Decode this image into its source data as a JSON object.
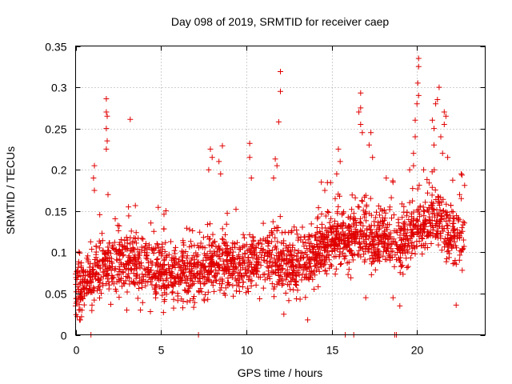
{
  "chart_data": {
    "type": "scatter",
    "title": "Day 098 of 2019, SRMTID for receiver caep",
    "xlabel": "GPS time / hours",
    "ylabel": "SRMTID / TECUs",
    "xlim": [
      0,
      24
    ],
    "ylim": [
      0,
      0.35
    ],
    "xticks": [
      0,
      5,
      10,
      15,
      20
    ],
    "xtick_labels": [
      "0",
      "5",
      "10",
      "15",
      "20"
    ],
    "yticks": [
      0,
      0.05,
      0.1,
      0.15,
      0.2,
      0.25,
      0.3,
      0.35
    ],
    "ytick_labels": [
      "0",
      "0.05",
      "0.1",
      "0.15",
      "0.2",
      "0.25",
      "0.3",
      "0.35"
    ],
    "grid": true,
    "marker": "+",
    "color": "#e00000",
    "baseline_profile": {
      "x": [
        0,
        1,
        2,
        3,
        4,
        5,
        6,
        7,
        8,
        9,
        10,
        11,
        12,
        13,
        14,
        15,
        16,
        17,
        18,
        19,
        20,
        21,
        22,
        22.8
      ],
      "y": [
        0.05,
        0.07,
        0.085,
        0.09,
        0.085,
        0.08,
        0.075,
        0.075,
        0.085,
        0.085,
        0.085,
        0.09,
        0.09,
        0.085,
        0.095,
        0.115,
        0.12,
        0.12,
        0.115,
        0.11,
        0.13,
        0.14,
        0.12,
        0.12
      ]
    },
    "baseline_spread": 0.03,
    "n_background_points": 2300,
    "highlighted_points": [
      {
        "x": 1.8,
        "y": 0.286
      },
      {
        "x": 1.8,
        "y": 0.27
      },
      {
        "x": 1.85,
        "y": 0.265
      },
      {
        "x": 1.8,
        "y": 0.25
      },
      {
        "x": 1.85,
        "y": 0.235
      },
      {
        "x": 1.8,
        "y": 0.225
      },
      {
        "x": 3.2,
        "y": 0.261
      },
      {
        "x": 1.1,
        "y": 0.205
      },
      {
        "x": 1.05,
        "y": 0.19
      },
      {
        "x": 1.1,
        "y": 0.175
      },
      {
        "x": 7.9,
        "y": 0.225
      },
      {
        "x": 8.0,
        "y": 0.215
      },
      {
        "x": 7.8,
        "y": 0.2
      },
      {
        "x": 8.6,
        "y": 0.229
      },
      {
        "x": 8.4,
        "y": 0.21
      },
      {
        "x": 8.5,
        "y": 0.195
      },
      {
        "x": 10.2,
        "y": 0.232
      },
      {
        "x": 10.2,
        "y": 0.215
      },
      {
        "x": 10.3,
        "y": 0.19
      },
      {
        "x": 11.7,
        "y": 0.213
      },
      {
        "x": 11.8,
        "y": 0.205
      },
      {
        "x": 11.6,
        "y": 0.19
      },
      {
        "x": 12.0,
        "y": 0.319
      },
      {
        "x": 12.0,
        "y": 0.295
      },
      {
        "x": 11.9,
        "y": 0.258
      },
      {
        "x": 15.4,
        "y": 0.225
      },
      {
        "x": 15.5,
        "y": 0.21
      },
      {
        "x": 15.3,
        "y": 0.195
      },
      {
        "x": 16.7,
        "y": 0.293
      },
      {
        "x": 16.7,
        "y": 0.275
      },
      {
        "x": 16.6,
        "y": 0.27
      },
      {
        "x": 16.7,
        "y": 0.255
      },
      {
        "x": 16.8,
        "y": 0.245
      },
      {
        "x": 17.3,
        "y": 0.245
      },
      {
        "x": 17.2,
        "y": 0.23
      },
      {
        "x": 17.4,
        "y": 0.215
      },
      {
        "x": 20.1,
        "y": 0.335
      },
      {
        "x": 20.1,
        "y": 0.325
      },
      {
        "x": 20.05,
        "y": 0.305
      },
      {
        "x": 20.1,
        "y": 0.29
      },
      {
        "x": 20.0,
        "y": 0.28
      },
      {
        "x": 19.9,
        "y": 0.26
      },
      {
        "x": 19.9,
        "y": 0.24
      },
      {
        "x": 19.8,
        "y": 0.22
      },
      {
        "x": 19.8,
        "y": 0.205
      },
      {
        "x": 21.3,
        "y": 0.3
      },
      {
        "x": 21.2,
        "y": 0.285
      },
      {
        "x": 21.1,
        "y": 0.28
      },
      {
        "x": 21.6,
        "y": 0.27
      },
      {
        "x": 21.7,
        "y": 0.265
      },
      {
        "x": 21.6,
        "y": 0.255
      },
      {
        "x": 20.9,
        "y": 0.26
      },
      {
        "x": 21.0,
        "y": 0.25
      },
      {
        "x": 21.0,
        "y": 0.23
      },
      {
        "x": 21.4,
        "y": 0.24
      },
      {
        "x": 21.5,
        "y": 0.22
      },
      {
        "x": 21.8,
        "y": 0.215
      },
      {
        "x": 22.6,
        "y": 0.195
      },
      {
        "x": 22.5,
        "y": 0.17
      },
      {
        "x": 22.6,
        "y": 0.165
      },
      {
        "x": 14.4,
        "y": 0.185
      },
      {
        "x": 14.6,
        "y": 0.175
      },
      {
        "x": 18.6,
        "y": 0.185
      },
      {
        "x": 18.2,
        "y": 0.19
      },
      {
        "x": 1.9,
        "y": 0.17
      },
      {
        "x": 3.1,
        "y": 0.155
      },
      {
        "x": 0.1,
        "y": 0.022
      },
      {
        "x": 0.2,
        "y": 0.03
      },
      {
        "x": 0.0,
        "y": 0.035
      },
      {
        "x": 3.0,
        "y": 0.03
      },
      {
        "x": 3.8,
        "y": 0.03
      },
      {
        "x": 12.2,
        "y": 0.025
      },
      {
        "x": 13.6,
        "y": 0.018
      },
      {
        "x": 17.0,
        "y": 0.045
      },
      {
        "x": 18.6,
        "y": 0.045
      },
      {
        "x": 19.0,
        "y": 0.035
      },
      {
        "x": 22.3,
        "y": 0.036
      },
      {
        "x": 0.9,
        "y": 0.0
      },
      {
        "x": 7.2,
        "y": 0.0
      },
      {
        "x": 15.8,
        "y": 0.0
      },
      {
        "x": 16.3,
        "y": 0.0
      },
      {
        "x": 18.7,
        "y": 0.0
      },
      {
        "x": 18.8,
        "y": 0.0
      }
    ]
  }
}
